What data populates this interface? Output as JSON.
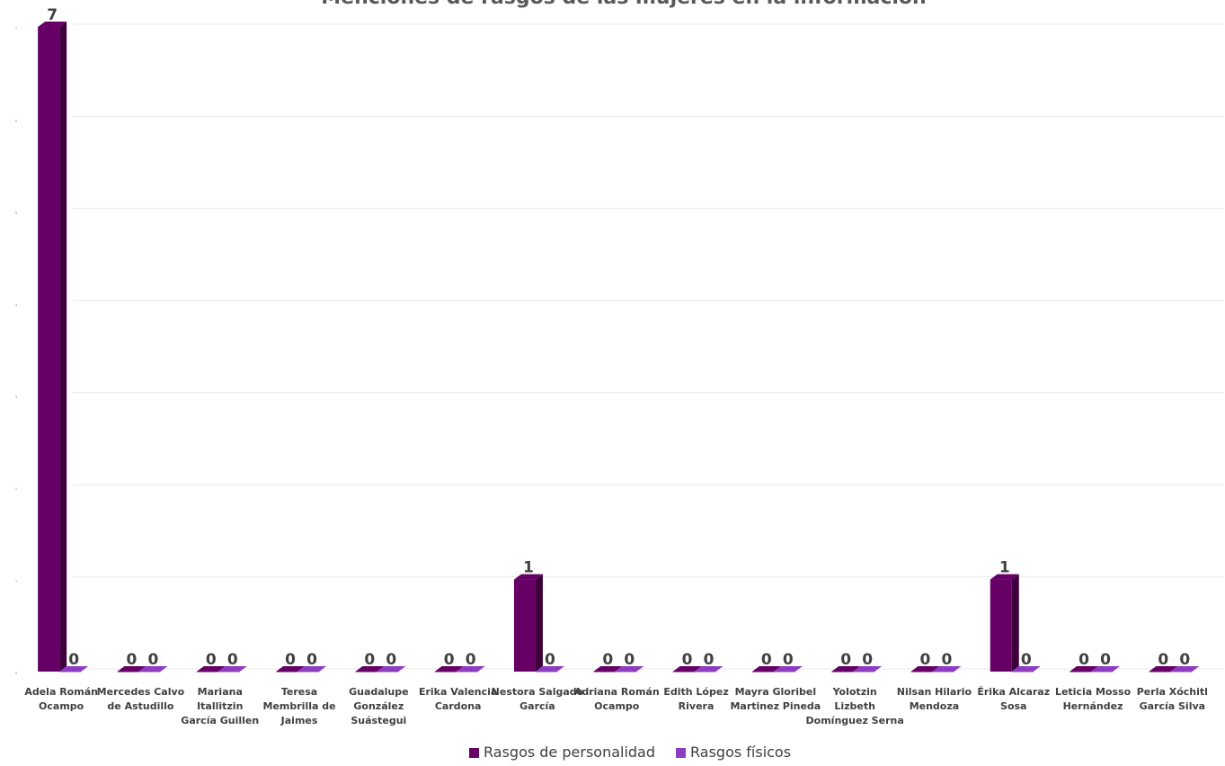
{
  "chart_data": {
    "type": "bar",
    "title": "Menciones de rasgos de las mujeres en la información",
    "xlabel": "",
    "ylabel": "",
    "ylim": [
      0,
      7
    ],
    "yticks": [
      "0",
      "1",
      "2",
      "3",
      "4",
      "5",
      "6",
      "7"
    ],
    "grid": true,
    "legend": "bottom",
    "categories": [
      "Adela Román Ocampo",
      "Mercedes Calvo de Astudillo",
      "Mariana Itallitzin García Guillen",
      "Teresa Membrilla de Jaimes",
      "Guadalupe González Suástegui",
      "Erika Valencia Cardona",
      "Nestora Salgado García",
      "Adriana Román Ocampo",
      "Edith López Rivera",
      "Mayra Gloribel Martinez Pineda",
      "Yolotzin Lizbeth Domínguez Serna",
      "Nilsan Hilario Mendoza",
      "Érika Alcaraz Sosa",
      "Leticia Mosso Hernández",
      "Perla Xóchitl García Silva"
    ],
    "series": [
      {
        "name": "Rasgos de personalidad",
        "color": "#660066",
        "values": [
          7,
          0,
          0,
          0,
          0,
          0,
          1,
          0,
          0,
          0,
          0,
          0,
          1,
          0,
          0
        ]
      },
      {
        "name": "Rasgos físicos",
        "color": "#8e3cc1",
        "values": [
          0,
          0,
          0,
          0,
          0,
          0,
          0,
          0,
          0,
          0,
          0,
          0,
          0,
          0,
          0
        ]
      }
    ]
  }
}
